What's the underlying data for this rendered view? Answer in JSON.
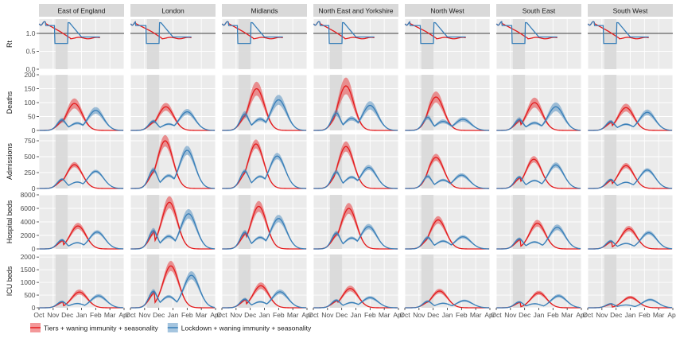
{
  "chart_data": {
    "type": "line",
    "layout": "facet-grid",
    "regions": [
      "East of England",
      "London",
      "Midlands",
      "North East and Yorkshire",
      "North West",
      "South East",
      "South West"
    ],
    "metrics": [
      {
        "key": "rt",
        "label": "Rt",
        "ticks": [
          0.0,
          0.5,
          1.0
        ],
        "tick_labels": [
          "0.0",
          "0.5",
          "1.0"
        ],
        "ylim": [
          0,
          1.4
        ]
      },
      {
        "key": "deaths",
        "label": "Deaths",
        "ticks": [
          0,
          50,
          100,
          150,
          200
        ],
        "tick_labels": [
          "0",
          "50",
          "100",
          "150",
          "200"
        ],
        "ylim": [
          0,
          200
        ]
      },
      {
        "key": "admissions",
        "label": "Admissions",
        "ticks": [
          0,
          250,
          500,
          750
        ],
        "tick_labels": [
          "0",
          "250",
          "500",
          "750"
        ],
        "ylim": [
          0,
          850
        ]
      },
      {
        "key": "hospital_beds",
        "label": "Hospital beds",
        "ticks": [
          0,
          2000,
          4000,
          6000,
          8000
        ],
        "tick_labels": [
          "0",
          "2000",
          "4000",
          "6000",
          "8000"
        ],
        "ylim": [
          0,
          8000
        ]
      },
      {
        "key": "icu_beds",
        "label": "ICU beds",
        "ticks": [
          0,
          500,
          1000,
          1500,
          2000
        ],
        "tick_labels": [
          "0",
          "500",
          "1000",
          "1500",
          "2000"
        ],
        "ylim": [
          0,
          2100
        ]
      }
    ],
    "x_tick_labels": [
      "Oct",
      "Nov",
      "Dec",
      "Jan",
      "Feb",
      "Mar",
      "Apr"
    ],
    "x_ticks_month_index": [
      0,
      1,
      2,
      3,
      4,
      5,
      6
    ],
    "xlim_month_index": [
      0,
      6
    ],
    "lockdown_shade_month_index": [
      1.17,
      2.03
    ],
    "grid": true,
    "legend_placement": "bottom-left",
    "colors": {
      "tiers": "#e41a1c",
      "lockdown": "#377eb8",
      "shade": "#d9d9d9",
      "panel": "#ebebeb",
      "grid": "#ffffff",
      "strip": "#d9d9d9",
      "refline": "#000000"
    },
    "series": [
      {
        "key": "tiers",
        "name": "Tiers + waning immunity + seasonality"
      },
      {
        "key": "lockdown",
        "name": "Lockdown + waning immunity + seasonality"
      }
    ],
    "rt_reference_value": 1.0,
    "peaks": {
      "East of England": {
        "deaths": {
          "tiers": [
            2.5,
            97,
            18
          ],
          "lockdown": [
            4.0,
            72,
            12
          ]
        },
        "admissions": {
          "tiers": [
            2.5,
            375,
            40
          ],
          "lockdown": [
            4.0,
            270,
            25
          ]
        },
        "hospital_beds": {
          "tiers": [
            2.75,
            3400,
            450
          ],
          "lockdown": [
            4.1,
            2500,
            280
          ]
        },
        "icu_beds": {
          "tiers": [
            2.85,
            620,
            100
          ],
          "lockdown": [
            4.2,
            470,
            70
          ]
        }
      },
      "London": {
        "deaths": {
          "tiers": [
            2.5,
            85,
            14
          ],
          "lockdown": [
            4.0,
            67,
            10
          ]
        },
        "admissions": {
          "tiers": [
            2.45,
            750,
            90
          ],
          "lockdown": [
            4.0,
            600,
            70
          ]
        },
        "hospital_beds": {
          "tiers": [
            2.75,
            6900,
            900
          ],
          "lockdown": [
            4.1,
            5200,
            700
          ]
        },
        "icu_beds": {
          "tiers": [
            2.85,
            1650,
            200
          ],
          "lockdown": [
            4.3,
            1280,
            160
          ]
        }
      },
      "Midlands": {
        "deaths": {
          "tiers": [
            2.45,
            150,
            25
          ],
          "lockdown": [
            4.0,
            110,
            18
          ]
        },
        "admissions": {
          "tiers": [
            2.4,
            700,
            70
          ],
          "lockdown": [
            3.9,
            510,
            50
          ]
        },
        "hospital_beds": {
          "tiers": [
            2.6,
            6300,
            800
          ],
          "lockdown": [
            4.0,
            4500,
            550
          ]
        },
        "icu_beds": {
          "tiers": [
            2.75,
            870,
            130
          ],
          "lockdown": [
            4.1,
            630,
            90
          ]
        }
      },
      "North East and Yorkshire": {
        "deaths": {
          "tiers": [
            2.3,
            160,
            30
          ],
          "lockdown": [
            4.0,
            90,
            15
          ]
        },
        "admissions": {
          "tiers": [
            2.3,
            660,
            80
          ],
          "lockdown": [
            3.9,
            330,
            40
          ]
        },
        "hospital_beds": {
          "tiers": [
            2.5,
            6000,
            800
          ],
          "lockdown": [
            3.9,
            3300,
            400
          ]
        },
        "icu_beds": {
          "tiers": [
            2.6,
            760,
            110
          ],
          "lockdown": [
            4.0,
            400,
            60
          ]
        }
      },
      "North West": {
        "deaths": {
          "tiers": [
            2.2,
            120,
            20
          ],
          "lockdown": [
            4.1,
            40,
            8
          ]
        },
        "admissions": {
          "tiers": [
            2.2,
            490,
            55
          ],
          "lockdown": [
            4.0,
            210,
            30
          ]
        },
        "hospital_beds": {
          "tiers": [
            2.35,
            4300,
            550
          ],
          "lockdown": [
            4.1,
            1800,
            250
          ]
        },
        "icu_beds": {
          "tiers": [
            2.45,
            660,
            90
          ],
          "lockdown": [
            4.2,
            280,
            40
          ]
        }
      },
      "South East": {
        "deaths": {
          "tiers": [
            2.7,
            100,
            18
          ],
          "lockdown": [
            4.2,
            85,
            16
          ]
        },
        "admissions": {
          "tiers": [
            2.65,
            460,
            50
          ],
          "lockdown": [
            4.2,
            370,
            40
          ]
        },
        "hospital_beds": {
          "tiers": [
            2.9,
            3800,
            500
          ],
          "lockdown": [
            4.3,
            3200,
            420
          ]
        },
        "icu_beds": {
          "tiers": [
            3.0,
            590,
            80
          ],
          "lockdown": [
            4.4,
            470,
            65
          ]
        }
      },
      "South West": {
        "deaths": {
          "tiers": [
            2.7,
            82,
            14
          ],
          "lockdown": [
            4.2,
            65,
            10
          ]
        },
        "admissions": {
          "tiers": [
            2.7,
            360,
            40
          ],
          "lockdown": [
            4.2,
            290,
            30
          ]
        },
        "hospital_beds": {
          "tiers": [
            2.9,
            3000,
            400
          ],
          "lockdown": [
            4.3,
            2400,
            300
          ]
        },
        "icu_beds": {
          "tiers": [
            3.0,
            410,
            60
          ],
          "lockdown": [
            4.4,
            320,
            45
          ]
        }
      }
    },
    "first_wave_lockdown": {
      "East of England": 0.45,
      "London": 0.35,
      "Midlands": 0.45,
      "North East and Yorkshire": 0.45,
      "North West": 0.35,
      "South East": 0.4,
      "South West": 0.45
    },
    "rt_levels": {
      "tiers": {
        "start": 1.28,
        "after": 0.87
      },
      "lockdown": {
        "start": 1.28,
        "during": 0.72,
        "after": 0.9
      }
    }
  }
}
